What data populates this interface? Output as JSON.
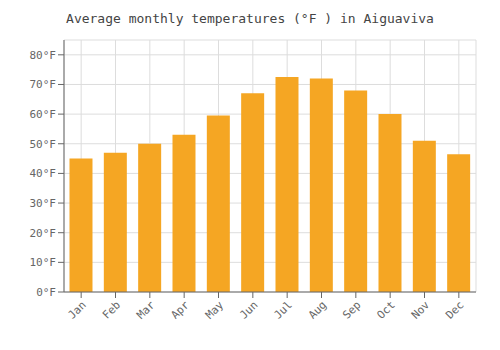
{
  "chart_data": {
    "type": "bar",
    "title": "Average monthly temperatures (°F ) in Aiguaviva",
    "categories": [
      "Jan",
      "Feb",
      "Mar",
      "Apr",
      "May",
      "Jun",
      "Jul",
      "Aug",
      "Sep",
      "Oct",
      "Nov",
      "Dec"
    ],
    "values": [
      45,
      47,
      50,
      53,
      59.5,
      67,
      72.5,
      72,
      68,
      60,
      51,
      46.5
    ],
    "color": "#F5A623",
    "ylim": [
      0,
      85
    ],
    "yticks": [
      {
        "value": 0,
        "label": "0°F"
      },
      {
        "value": 10,
        "label": "10°F"
      },
      {
        "value": 20,
        "label": "20°F"
      },
      {
        "value": 30,
        "label": "30°F"
      },
      {
        "value": 40,
        "label": "40°F"
      },
      {
        "value": 50,
        "label": "50°F"
      },
      {
        "value": 60,
        "label": "60°F"
      },
      {
        "value": 70,
        "label": "70°F"
      },
      {
        "value": 80,
        "label": "80°F"
      }
    ],
    "grid": true
  }
}
